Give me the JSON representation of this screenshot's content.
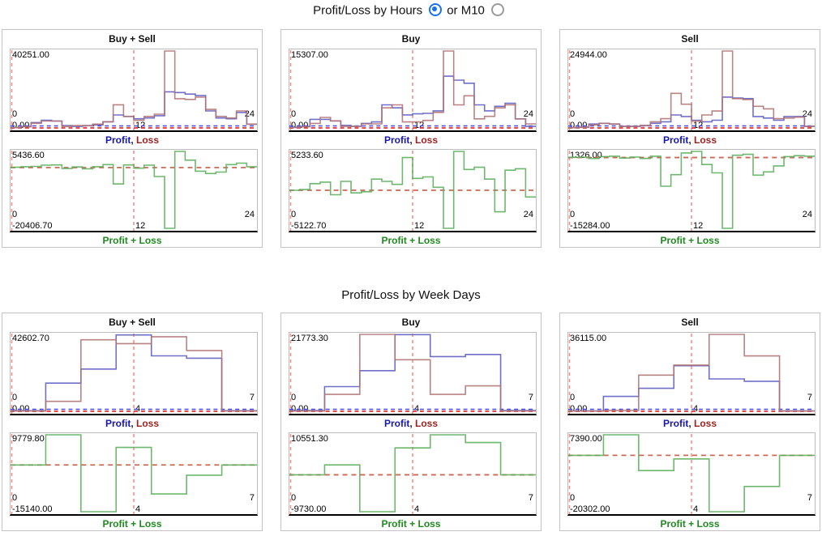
{
  "header": {
    "title": "Profit/Loss by Hours",
    "alt_label": "or M10",
    "selected_option": "hours"
  },
  "sections": [
    {
      "title": "Profit/Loss by Hours"
    },
    {
      "title": "Profit/Loss by Week Days"
    }
  ],
  "colors": {
    "profit_line": "#5b5bc0",
    "loss_line": "#b07272",
    "net_line": "#5aad5a",
    "vertical_dash": "#f49084",
    "zero_dash_red": "#e03434",
    "zero_dash_blue": "#4a4ae0",
    "net_zero_dash": "#c86a55",
    "legend_profit": "#1616b6",
    "legend_loss": "#9c1f1f",
    "legend_net": "#1e8a1e"
  },
  "chart_data": [
    {
      "section": "hours",
      "title": "Buy + Sell",
      "type": "step-line",
      "x_ticks": [
        "0",
        "12",
        "24"
      ],
      "bins": 24,
      "top": {
        "y_max": 40251.0,
        "y_min": 0,
        "y_max_label": "40251.00",
        "y_min_label": "0.00",
        "series": [
          {
            "name": "Profit",
            "color": "#5b5bc0",
            "values": [
              200,
              800,
              2800,
              4000,
              3600,
              1200,
              800,
              1200,
              1600,
              3200,
              6800,
              6000,
              4800,
              5200,
              6400,
              18900,
              18500,
              17700,
              16900,
              8900,
              5200,
              4800,
              8100,
              2000
            ]
          },
          {
            "name": "Loss",
            "color": "#b07272",
            "values": [
              150,
              600,
              2400,
              3600,
              3600,
              800,
              1200,
              1200,
              2000,
              3200,
              12100,
              6000,
              4000,
              6000,
              7200,
              40251,
              15300,
              14900,
              16100,
              9700,
              6000,
              5200,
              8900,
              2000
            ]
          }
        ]
      },
      "bottom": {
        "legend": "Profit + Loss",
        "y_max": 5436.6,
        "y_min": -20406.7,
        "y_max_label": "5436.60",
        "y_min_label": "-20406.70",
        "series": [
          {
            "name": "Profit + Loss",
            "color": "#5aad5a",
            "values": [
              100,
              300,
              400,
              800,
              900,
              -300,
              200,
              -400,
              300,
              1000,
              -5500,
              900,
              -200,
              800,
              -3000,
              -20406.7,
              5436.6,
              2500,
              -1200,
              -2000,
              -1500,
              1000,
              1500,
              300
            ]
          }
        ]
      }
    },
    {
      "section": "hours",
      "title": "Buy",
      "type": "step-line",
      "x_ticks": [
        "0",
        "12",
        "24"
      ],
      "bins": 24,
      "top": {
        "y_max": 15307.0,
        "y_min": 0,
        "y_max_label": "15307.00",
        "y_min_label": "0.00",
        "series": [
          {
            "name": "Profit",
            "color": "#5b5bc0",
            "values": [
              150,
              300,
              1700,
              1700,
              1400,
              500,
              300,
              900,
              1200,
              4600,
              4000,
              2600,
              2800,
              2900,
              3400,
              10300,
              9500,
              8900,
              4600,
              3400,
              4300,
              4900,
              1800,
              300
            ]
          },
          {
            "name": "Loss",
            "color": "#b07272",
            "values": [
              80,
              230,
              900,
              2100,
              1400,
              300,
              300,
              800,
              800,
              4000,
              4600,
              1200,
              1200,
              1500,
              3100,
              15307,
              4600,
              6400,
              1800,
              2300,
              4000,
              4600,
              1800,
              800
            ]
          }
        ]
      },
      "bottom": {
        "legend": "Profit + Loss",
        "y_max": 5233.6,
        "y_min": -5122.7,
        "y_max_label": "5233.60",
        "y_min_label": "-5122.70",
        "series": [
          {
            "name": "Profit + Loss",
            "color": "#5aad5a",
            "values": [
              0,
              100,
              900,
              1100,
              -600,
              1200,
              -350,
              -200,
              1500,
              1200,
              800,
              4400,
              1600,
              1800,
              400,
              -5122.7,
              5233.6,
              2800,
              3100,
              1500,
              -2900,
              2700,
              2900,
              -900
            ]
          }
        ]
      }
    },
    {
      "section": "hours",
      "title": "Sell",
      "type": "step-line",
      "x_ticks": [
        "0",
        "12",
        "24"
      ],
      "bins": 24,
      "top": {
        "y_max": 24944.0,
        "y_min": 0,
        "y_max_label": "24944.00",
        "y_min_label": "0.00",
        "series": [
          {
            "name": "Profit",
            "color": "#5b5bc0",
            "values": [
              120,
              250,
              1250,
              1500,
              1250,
              500,
              500,
              750,
              1500,
              2000,
              4200,
              3700,
              2500,
              2000,
              2500,
              10000,
              9700,
              9500,
              3700,
              3200,
              2500,
              3700,
              3700,
              500
            ]
          },
          {
            "name": "Loss",
            "color": "#b07272",
            "values": [
              75,
              200,
              1000,
              1500,
              1250,
              500,
              500,
              750,
              2000,
              3000,
              11200,
              7700,
              2200,
              4200,
              5500,
              24944,
              9500,
              9200,
              7000,
              6200,
              3000,
              3200,
              3500,
              500
            ]
          }
        ]
      },
      "bottom": {
        "legend": "Profit + Loss",
        "y_max": 1326.0,
        "y_min": -15284.0,
        "y_max_label": "1326.00",
        "y_min_label": "-15284.00",
        "series": [
          {
            "name": "Profit + Loss",
            "color": "#5aad5a",
            "values": [
              50,
              100,
              -200,
              200,
              300,
              -100,
              100,
              -200,
              300,
              -6200,
              -3700,
              1000,
              1326,
              -1500,
              -3300,
              -15284,
              500,
              700,
              -3800,
              -3100,
              -1800,
              200,
              400,
              300
            ]
          }
        ]
      }
    },
    {
      "section": "weekdays",
      "title": "Buy + Sell",
      "type": "step-line",
      "x_ticks": [
        "0",
        "4",
        "7"
      ],
      "bins": 7,
      "top": {
        "y_max": 42602.7,
        "y_min": 0,
        "y_max_label": "42602.70",
        "y_min_label": "0.00",
        "series": [
          {
            "name": "Profit",
            "color": "#5b5bc0",
            "values": [
              300,
              15600,
              23400,
              42300,
              30700,
              29400,
              300
            ]
          },
          {
            "name": "Loss",
            "color": "#b07272",
            "values": [
              200,
              5500,
              39600,
              37500,
              41300,
              33700,
              200
            ]
          }
        ]
      },
      "bottom": {
        "legend": "Profit + Loss",
        "y_max": 9779.8,
        "y_min": -15140.0,
        "y_max_label": "9779.80",
        "y_min_label": "-15140.00",
        "series": [
          {
            "name": "Profit + Loss",
            "color": "#5aad5a",
            "values": [
              0,
              9779.8,
              -15140.0,
              5700,
              -9400,
              -3300,
              0
            ]
          }
        ]
      }
    },
    {
      "section": "weekdays",
      "title": "Buy",
      "type": "step-line",
      "x_ticks": [
        "0",
        "4",
        "7"
      ],
      "bins": 7,
      "top": {
        "y_max": 21773.3,
        "y_min": 0,
        "y_max_label": "21773.30",
        "y_min_label": "0.00",
        "series": [
          {
            "name": "Profit",
            "color": "#5b5bc0",
            "values": [
              200,
              7000,
              11500,
              21700,
              15500,
              16100,
              200
            ]
          },
          {
            "name": "Loss",
            "color": "#b07272",
            "values": [
              100,
              4800,
              21773.3,
              14600,
              4800,
              7200,
              100
            ]
          }
        ]
      },
      "bottom": {
        "legend": "Profit + Loss",
        "y_max": 10551.3,
        "y_min": -9730.0,
        "y_max_label": "10551.30",
        "y_min_label": "-9730.00",
        "series": [
          {
            "name": "Profit + Loss",
            "color": "#5aad5a",
            "values": [
              0,
              2600,
              -9730.0,
              7100,
              10551.3,
              8500,
              0
            ]
          }
        ]
      }
    },
    {
      "section": "weekdays",
      "title": "Sell",
      "type": "step-line",
      "x_ticks": [
        "0",
        "4",
        "7"
      ],
      "bins": 7,
      "top": {
        "y_max": 36115.0,
        "y_min": 0,
        "y_max_label": "36115.00",
        "y_min_label": "0.00",
        "series": [
          {
            "name": "Profit",
            "color": "#5b5bc0",
            "values": [
              200,
              7000,
              10800,
              21400,
              15200,
              14100,
              200
            ]
          },
          {
            "name": "Loss",
            "color": "#b07272",
            "values": [
              100,
              400,
              17000,
              21700,
              36115.0,
              26000,
              100
            ]
          }
        ]
      },
      "bottom": {
        "legend": "Profit + Loss",
        "y_max": 7390.0,
        "y_min": -20302.0,
        "y_max_label": "7390.00",
        "y_min_label": "-20302.00",
        "series": [
          {
            "name": "Profit + Loss",
            "color": "#5aad5a",
            "values": [
              0,
              7390.0,
              -5500,
              -1300,
              -20302.0,
              -11200,
              0
            ]
          }
        ]
      }
    }
  ]
}
